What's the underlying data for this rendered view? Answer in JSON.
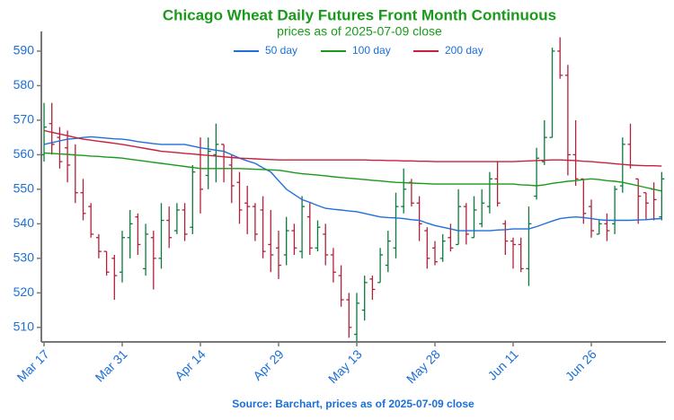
{
  "chart_data": {
    "type": "ohlc",
    "title": "Chicago Wheat Daily Futures Front Month Continuous",
    "subtitle": "prices as of 2025-07-09 close",
    "source": "Source: Barchart, prices as of 2025-07-09 close",
    "categories": [
      "Mar 17",
      null,
      null,
      null,
      null,
      null,
      null,
      null,
      null,
      null,
      "Mar 31",
      null,
      null,
      null,
      null,
      null,
      null,
      null,
      null,
      null,
      "Apr 14",
      null,
      null,
      null,
      null,
      null,
      null,
      null,
      null,
      null,
      "Apr 29",
      null,
      null,
      null,
      null,
      null,
      null,
      null,
      null,
      null,
      "May 13",
      null,
      null,
      null,
      null,
      null,
      null,
      null,
      null,
      null,
      "May 28",
      null,
      null,
      null,
      null,
      null,
      null,
      null,
      null,
      null,
      "Jun 11",
      null,
      null,
      null,
      null,
      null,
      null,
      null,
      null,
      null,
      "Jun 26",
      null,
      null,
      null,
      null,
      null,
      null,
      null,
      null,
      null
    ],
    "open": [
      560,
      569,
      565,
      562,
      560,
      549,
      545,
      536,
      532,
      530,
      526,
      536,
      542,
      527,
      536,
      530,
      541,
      538,
      544,
      539,
      560,
      554,
      560,
      563,
      557,
      552,
      546,
      545,
      544,
      534,
      533,
      531,
      538,
      532,
      542,
      533,
      537,
      531,
      525,
      518,
      508,
      515,
      524,
      523,
      528,
      533,
      545,
      552,
      546,
      538,
      533,
      530,
      536,
      534,
      545,
      536,
      540,
      545,
      553,
      540,
      535,
      534,
      527,
      548,
      558,
      565,
      590,
      583,
      560,
      553,
      545,
      537,
      540,
      540,
      551,
      563,
      553,
      549,
      550,
      542
    ],
    "high": [
      575,
      575,
      568,
      567,
      563,
      553,
      546,
      537,
      532,
      531,
      538,
      544,
      543,
      540,
      538,
      546,
      545,
      546,
      546,
      557,
      565,
      565,
      569,
      563,
      560,
      555,
      551,
      546,
      548,
      544,
      538,
      542,
      540,
      548,
      546,
      541,
      540,
      533,
      528,
      520,
      520,
      525,
      525,
      533,
      538,
      549,
      556,
      553,
      548,
      539,
      535,
      537,
      540,
      550,
      546,
      548,
      550,
      555,
      558,
      541,
      536,
      536,
      545,
      562,
      570,
      591,
      594,
      586,
      570,
      553,
      547,
      541,
      543,
      551,
      565,
      569,
      553,
      549,
      552,
      555
    ],
    "low": [
      558,
      560,
      556,
      552,
      546,
      541,
      536,
      530,
      525,
      518,
      523,
      530,
      531,
      525,
      521,
      527,
      533,
      537,
      535,
      537,
      543,
      550,
      552,
      552,
      546,
      540,
      537,
      535,
      530,
      526,
      524,
      528,
      531,
      530,
      531,
      532,
      528,
      523,
      516,
      507,
      506,
      512,
      518,
      523,
      526,
      530,
      543,
      545,
      535,
      527,
      528,
      529,
      532,
      534,
      534,
      536,
      539,
      543,
      545,
      531,
      527,
      526,
      522,
      547,
      557,
      565,
      582,
      554,
      551,
      540,
      536,
      537,
      535,
      537,
      549,
      556,
      540,
      541,
      541,
      541
    ],
    "close": [
      568,
      563,
      558,
      557,
      549,
      543,
      537,
      532,
      526,
      525,
      536,
      540,
      534,
      537,
      530,
      541,
      536,
      544,
      537,
      555,
      550,
      561,
      563,
      556,
      551,
      544,
      545,
      537,
      532,
      531,
      528,
      538,
      533,
      545,
      533,
      539,
      531,
      526,
      518,
      510,
      517,
      523,
      521,
      531,
      535,
      545,
      550,
      546,
      540,
      530,
      529,
      535,
      533,
      545,
      537,
      544,
      546,
      553,
      546,
      535,
      534,
      527,
      540,
      559,
      565,
      590,
      583,
      560,
      553,
      543,
      538,
      540,
      538,
      550,
      563,
      557,
      548,
      546,
      547,
      553
    ],
    "up_color": "#0b7a3c",
    "down_color": "#b3203a",
    "series": [
      {
        "name": "50 day",
        "color": "#1f6fdb",
        "values": [
          563.0,
          563.5,
          564.0,
          564.5,
          564.7,
          565.0,
          565.2,
          565.0,
          564.8,
          564.6,
          564.5,
          564.2,
          563.8,
          563.5,
          563.2,
          563.0,
          563.0,
          563.0,
          563.0,
          562.5,
          562.0,
          561.7,
          561.3,
          561.0,
          560.0,
          559.0,
          558.2,
          557.5,
          556.2,
          555.0,
          552.5,
          550.0,
          548.5,
          547.0,
          546.2,
          545.3,
          544.5,
          544.2,
          544.0,
          543.7,
          543.5,
          543.0,
          542.5,
          542.0,
          541.8,
          541.7,
          541.5,
          541.2,
          541.0,
          540.2,
          539.5,
          539.0,
          538.5,
          538.0,
          538.0,
          538.0,
          538.0,
          538.0,
          538.2,
          538.3,
          538.5,
          538.5,
          538.5,
          539.2,
          540.0,
          540.8,
          541.5,
          541.8,
          542.0,
          541.8,
          541.5,
          541.2,
          541.0,
          541.0,
          541.0,
          541.0,
          541.1,
          541.2,
          541.4,
          541.5
        ]
      },
      {
        "name": "100 day",
        "color": "#1a9a1a",
        "values": [
          560.5,
          560.4,
          560.2,
          560.1,
          559.9,
          559.8,
          559.6,
          559.5,
          559.3,
          559.2,
          559.0,
          558.7,
          558.4,
          558.1,
          557.8,
          557.5,
          557.2,
          556.9,
          556.6,
          556.3,
          556.0,
          556.0,
          556.0,
          556.0,
          556.0,
          556.0,
          555.9,
          555.8,
          555.7,
          555.6,
          555.5,
          555.2,
          554.8,
          554.5,
          554.3,
          554.1,
          553.9,
          553.6,
          553.4,
          553.2,
          553.0,
          552.8,
          552.6,
          552.4,
          552.2,
          552.0,
          551.9,
          551.8,
          551.7,
          551.6,
          551.5,
          551.5,
          551.5,
          551.5,
          551.5,
          551.5,
          551.5,
          551.5,
          551.5,
          551.5,
          551.5,
          551.3,
          551.2,
          551.0,
          551.3,
          551.7,
          552.0,
          552.3,
          552.5,
          552.8,
          553.0,
          552.8,
          552.5,
          552.3,
          552.0,
          551.5,
          551.0,
          550.5,
          550.0,
          549.5
        ]
      },
      {
        "name": "200 day",
        "color": "#c8203c",
        "values": [
          567.0,
          566.5,
          566.0,
          565.5,
          565.0,
          564.5,
          564.2,
          563.9,
          563.6,
          563.3,
          563.0,
          562.6,
          562.2,
          561.8,
          561.4,
          561.0,
          560.8,
          560.6,
          560.4,
          560.2,
          560.0,
          559.8,
          559.6,
          559.4,
          559.2,
          559.0,
          558.9,
          558.8,
          558.7,
          558.6,
          558.5,
          558.5,
          558.5,
          558.5,
          558.5,
          558.5,
          558.5,
          558.5,
          558.5,
          558.5,
          558.5,
          558.5,
          558.4,
          558.4,
          558.3,
          558.3,
          558.2,
          558.2,
          558.1,
          558.1,
          558.0,
          558.0,
          558.0,
          558.0,
          558.0,
          558.0,
          558.0,
          558.0,
          558.0,
          558.0,
          558.0,
          558.1,
          558.2,
          558.3,
          558.4,
          558.5,
          558.5,
          558.4,
          558.3,
          558.1,
          558.0,
          557.8,
          557.6,
          557.4,
          557.2,
          557.0,
          556.9,
          556.8,
          556.8,
          556.7
        ]
      }
    ],
    "ylim": [
      505.8,
      595.7
    ],
    "yticks": [
      510,
      520,
      530,
      540,
      550,
      560,
      570,
      580,
      590
    ]
  }
}
